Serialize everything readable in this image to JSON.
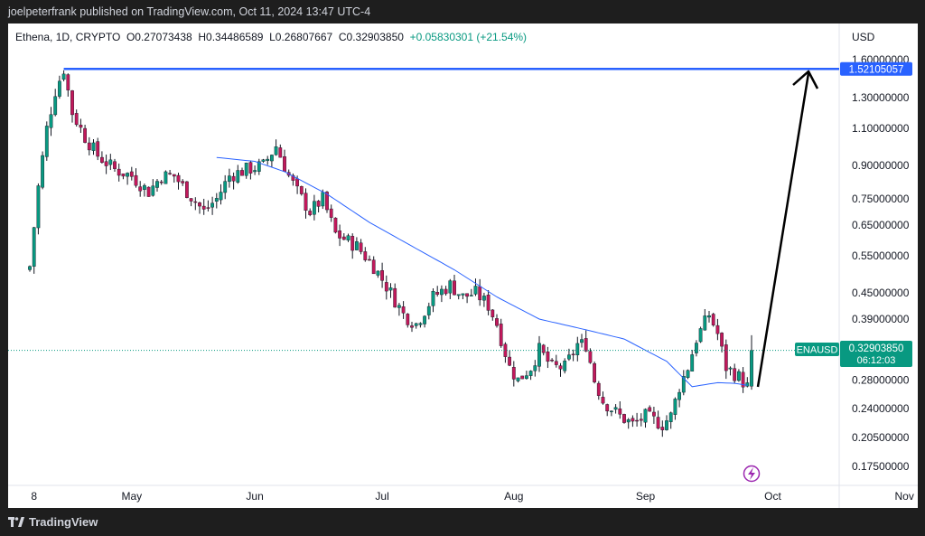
{
  "publish_note": "joelpeterfrank published on TradingView.com, Oct 11, 2024 13:47 UTC-4",
  "footer": {
    "brand": "TradingView"
  },
  "symbol": {
    "name": "Ethena, 1D, CRYPTO",
    "open": "O0.27073438",
    "high": "H0.34486589",
    "low": "L0.26807667",
    "close": "C0.32903850",
    "change": "+0.05830301 (+21.54%)"
  },
  "chart_data": {
    "type": "candlestick",
    "y_scale": "log",
    "currency": "USD",
    "y_ticks": [
      "1.60000000",
      "1.30000000",
      "1.10000000",
      "0.90000000",
      "0.75000000",
      "0.65000000",
      "0.55000000",
      "0.45000000",
      "0.39000000",
      "0.28000000",
      "0.24000000",
      "0.20500000",
      "0.17500000"
    ],
    "x_ticks": [
      "8",
      "May",
      "Jun",
      "Jul",
      "Aug",
      "Sep",
      "Oct",
      "Nov"
    ],
    "resistance_line": {
      "value": 1.52105057,
      "label": "1.52105057",
      "color": "#2962ff"
    },
    "last_price": {
      "ticker": "ENAUSD",
      "value": 0.3290385,
      "label": "0.32903850",
      "countdown": "06:12:03",
      "color": "#089981"
    },
    "ma_line_color": "#2962ff",
    "up_color": "#089981",
    "down_color": "#c2185b",
    "price_waypoints": [
      [
        0,
        0.52
      ],
      [
        2,
        0.8
      ],
      [
        4,
        1.1
      ],
      [
        6,
        1.35
      ],
      [
        8,
        1.52
      ],
      [
        10,
        1.2
      ],
      [
        13,
        1.05
      ],
      [
        16,
        0.95
      ],
      [
        20,
        0.88
      ],
      [
        24,
        0.85
      ],
      [
        28,
        0.78
      ],
      [
        31,
        0.85
      ],
      [
        34,
        0.85
      ],
      [
        38,
        0.76
      ],
      [
        41,
        0.7
      ],
      [
        44,
        0.75
      ],
      [
        47,
        0.85
      ],
      [
        51,
        0.88
      ],
      [
        55,
        0.9
      ],
      [
        58,
        1.0
      ],
      [
        61,
        0.85
      ],
      [
        63,
        0.78
      ],
      [
        66,
        0.7
      ],
      [
        69,
        0.75
      ],
      [
        72,
        0.62
      ],
      [
        77,
        0.58
      ],
      [
        81,
        0.52
      ],
      [
        85,
        0.45
      ],
      [
        88,
        0.4
      ],
      [
        91,
        0.38
      ],
      [
        95,
        0.44
      ],
      [
        99,
        0.47
      ],
      [
        102,
        0.44
      ],
      [
        105,
        0.45
      ],
      [
        108,
        0.42
      ],
      [
        110,
        0.38
      ],
      [
        113,
        0.3
      ],
      [
        115,
        0.28
      ],
      [
        118,
        0.3
      ],
      [
        120,
        0.33
      ],
      [
        123,
        0.3
      ],
      [
        126,
        0.3
      ],
      [
        129,
        0.34
      ],
      [
        131,
        0.34
      ],
      [
        133,
        0.28
      ],
      [
        135,
        0.25
      ],
      [
        139,
        0.23
      ],
      [
        142,
        0.22
      ],
      [
        145,
        0.23
      ],
      [
        149,
        0.22
      ],
      [
        151,
        0.23
      ],
      [
        153,
        0.27
      ],
      [
        155,
        0.3
      ],
      [
        157,
        0.35
      ],
      [
        160,
        0.4
      ],
      [
        162,
        0.36
      ],
      [
        164,
        0.3
      ],
      [
        167,
        0.285
      ],
      [
        169,
        0.27
      ],
      [
        170,
        0.3290385
      ]
    ],
    "ma_waypoints": [
      [
        44,
        0.94
      ],
      [
        53,
        0.92
      ],
      [
        60,
        0.87
      ],
      [
        70,
        0.77
      ],
      [
        80,
        0.66
      ],
      [
        90,
        0.58
      ],
      [
        100,
        0.51
      ],
      [
        110,
        0.44
      ],
      [
        120,
        0.39
      ],
      [
        130,
        0.37
      ],
      [
        140,
        0.35
      ],
      [
        150,
        0.31
      ],
      [
        156,
        0.27
      ],
      [
        162,
        0.276
      ],
      [
        166,
        0.275
      ],
      [
        169,
        0.272
      ]
    ]
  }
}
